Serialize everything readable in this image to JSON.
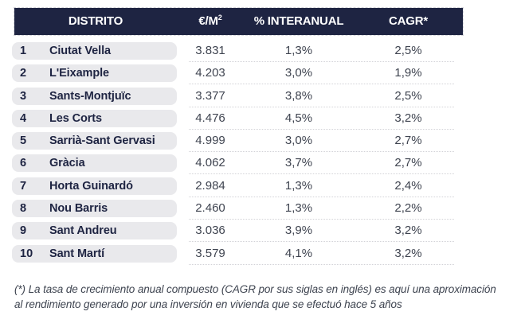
{
  "table": {
    "columns": {
      "district": {
        "label": "DISTRITO"
      },
      "price": {
        "label": "€/M",
        "sup": "2"
      },
      "yoy": {
        "label": "% INTERANUAL"
      },
      "cagr": {
        "label": "CAGR*"
      }
    },
    "rows": [
      {
        "rank": "1",
        "district": "Ciutat Vella",
        "price": "3.831",
        "yoy": "1,3%",
        "cagr": "2,5%"
      },
      {
        "rank": "2",
        "district": "L'Eixample",
        "price": "4.203",
        "yoy": "3,0%",
        "cagr": "1,9%"
      },
      {
        "rank": "3",
        "district": "Sants-Montjuïc",
        "price": "3.377",
        "yoy": "3,8%",
        "cagr": "2,5%"
      },
      {
        "rank": "4",
        "district": "Les Corts",
        "price": "4.476",
        "yoy": "4,5%",
        "cagr": "3,2%"
      },
      {
        "rank": "5",
        "district": "Sarrià-Sant Gervasi",
        "price": "4.999",
        "yoy": "3,0%",
        "cagr": "2,7%"
      },
      {
        "rank": "6",
        "district": "Gràcia",
        "price": "4.062",
        "yoy": "3,7%",
        "cagr": "2,7%"
      },
      {
        "rank": "7",
        "district": "Horta Guinardó",
        "price": "2.984",
        "yoy": "1,3%",
        "cagr": "2,4%"
      },
      {
        "rank": "8",
        "district": "Nou Barris",
        "price": "2.460",
        "yoy": "1,3%",
        "cagr": "2,2%"
      },
      {
        "rank": "9",
        "district": "Sant Andreu",
        "price": "3.036",
        "yoy": "3,9%",
        "cagr": "3,2%"
      },
      {
        "rank": "10",
        "district": "Sant Martí",
        "price": "3.579",
        "yoy": "4,1%",
        "cagr": "3,2%"
      }
    ]
  },
  "footnote": {
    "line1": "(*) La tasa de crecimiento anual compuesto (CAGR por sus siglas en inglés) es aquí una aproximación",
    "line2": "al rendimiento generado por una inversión en vivienda que se efectuó hace 5 años"
  },
  "colors": {
    "header_bg": "#1e2442",
    "header_text": "#ffffff",
    "pill_bg": "#e9e9ec",
    "district_text": "#1e2442",
    "value_text": "#3f4450"
  }
}
